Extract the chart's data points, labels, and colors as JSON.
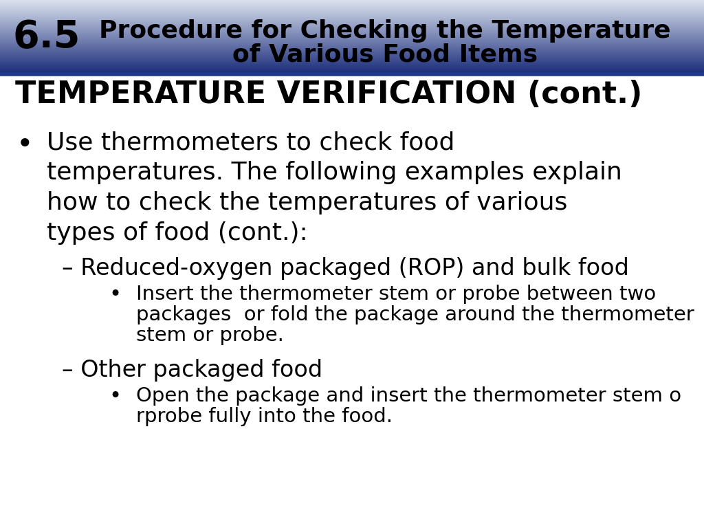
{
  "header_number": "6.5",
  "header_title_line1": "Procedure for Checking the Temperature",
  "header_title_line2": "of Various Food Items",
  "section_title": "TEMPERATURE VERIFICATION (cont.)",
  "bg_color": "#ffffff",
  "text_color": "#000000",
  "bullet1_lines": [
    "Use thermometers to check food",
    "temperatures. The following examples explain",
    "how to check the temperatures of various",
    "types of food (cont.):"
  ],
  "sub1": "– Reduced-oxygen packaged (ROP) and bulk food",
  "sub1_bullet_lines": [
    "Insert the thermometer stem or probe between two",
    "packages  or fold the package around the thermometer",
    "stem or probe."
  ],
  "sub2": "– Other packaged food",
  "sub2_bullet_lines": [
    "Open the package and insert the thermometer stem o",
    "rprobe fully into the food."
  ]
}
